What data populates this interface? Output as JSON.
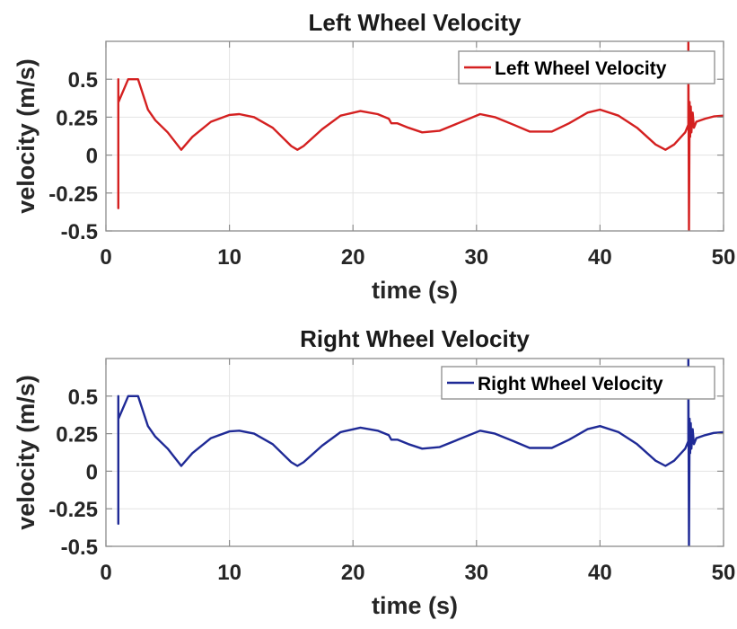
{
  "chart_data": [
    {
      "type": "line",
      "title": "Left Wheel Velocity",
      "xlabel": "time (s)",
      "ylabel": "velocity (m/s)",
      "xlim": [
        0,
        50
      ],
      "ylim": [
        -0.5,
        0.75
      ],
      "xticks": [
        0,
        10,
        20,
        30,
        40,
        50
      ],
      "xtick_labels": [
        "0",
        "10",
        "20",
        "30",
        "40",
        "50"
      ],
      "yticks": [
        -0.5,
        -0.25,
        0,
        0.25,
        0.5
      ],
      "ytick_labels": [
        "-0.5",
        "-0.25",
        "0",
        "0.25",
        "0.5"
      ],
      "grid": true,
      "legend": {
        "position": "top-right",
        "entries": [
          "Left Wheel Velocity"
        ]
      },
      "series": [
        {
          "name": "Left Wheel Velocity",
          "color": "#d42020",
          "x": [
            1.0,
            1.0,
            1.0,
            1.02,
            1.8,
            2.6,
            3.0,
            3.4,
            4.0,
            5.0,
            6.1,
            7.0,
            8.5,
            10.0,
            10.8,
            12.0,
            13.5,
            15.0,
            15.5,
            16.0,
            17.5,
            19.0,
            20.6,
            22.0,
            22.9,
            23.1,
            23.6,
            24.5,
            25.6,
            27.0,
            28.5,
            30.3,
            31.5,
            33.0,
            34.3,
            36.1,
            37.5,
            39.0,
            40.0,
            41.5,
            43.0,
            44.5,
            45.3,
            46.0,
            46.9,
            47.15,
            47.15,
            47.2,
            47.25,
            47.3,
            47.35,
            47.4,
            47.5,
            47.6,
            47.8,
            48.5,
            49.2,
            50.0
          ],
          "y": [
            0.5,
            -0.35,
            0.35,
            0.35,
            0.5,
            0.5,
            0.4,
            0.3,
            0.23,
            0.15,
            0.035,
            0.12,
            0.22,
            0.265,
            0.27,
            0.25,
            0.18,
            0.06,
            0.035,
            0.06,
            0.17,
            0.26,
            0.29,
            0.27,
            0.24,
            0.21,
            0.21,
            0.18,
            0.15,
            0.16,
            0.21,
            0.27,
            0.25,
            0.2,
            0.155,
            0.155,
            0.21,
            0.28,
            0.3,
            0.26,
            0.18,
            0.07,
            0.035,
            0.07,
            0.15,
            0.2,
            0.75,
            -0.5,
            0.35,
            0.12,
            0.32,
            0.15,
            0.28,
            0.18,
            0.22,
            0.24,
            0.255,
            0.26
          ]
        }
      ]
    },
    {
      "type": "line",
      "title": "Right Wheel Velocity",
      "xlabel": "time (s)",
      "ylabel": "velocity (m/s)",
      "xlim": [
        0,
        50
      ],
      "ylim": [
        -0.5,
        0.75
      ],
      "xticks": [
        0,
        10,
        20,
        30,
        40,
        50
      ],
      "xtick_labels": [
        "0",
        "10",
        "20",
        "30",
        "40",
        "50"
      ],
      "yticks": [
        -0.5,
        -0.25,
        0,
        0.25,
        0.5
      ],
      "ytick_labels": [
        "-0.5",
        "-0.25",
        "0",
        "0.25",
        "0.5"
      ],
      "grid": true,
      "legend": {
        "position": "top-right",
        "entries": [
          "Right Wheel Velocity"
        ]
      },
      "series": [
        {
          "name": "Right Wheel Velocity",
          "color": "#1f2a96",
          "x": [
            1.0,
            1.0,
            1.0,
            1.02,
            1.8,
            2.6,
            3.0,
            3.4,
            4.0,
            5.0,
            6.1,
            7.0,
            8.5,
            10.0,
            10.8,
            12.0,
            13.5,
            15.0,
            15.5,
            16.0,
            17.5,
            19.0,
            20.6,
            22.0,
            22.9,
            23.1,
            23.6,
            24.5,
            25.6,
            27.0,
            28.5,
            30.3,
            31.5,
            33.0,
            34.3,
            36.1,
            37.5,
            39.0,
            40.0,
            41.5,
            43.0,
            44.5,
            45.3,
            46.0,
            46.9,
            47.15,
            47.15,
            47.2,
            47.25,
            47.3,
            47.35,
            47.4,
            47.5,
            47.6,
            47.8,
            48.5,
            49.2,
            50.0
          ],
          "y": [
            0.5,
            -0.35,
            0.35,
            0.35,
            0.5,
            0.5,
            0.4,
            0.3,
            0.23,
            0.15,
            0.035,
            0.12,
            0.22,
            0.265,
            0.27,
            0.25,
            0.18,
            0.06,
            0.035,
            0.06,
            0.17,
            0.26,
            0.29,
            0.27,
            0.24,
            0.21,
            0.21,
            0.18,
            0.15,
            0.16,
            0.21,
            0.27,
            0.25,
            0.2,
            0.155,
            0.155,
            0.21,
            0.28,
            0.3,
            0.26,
            0.18,
            0.07,
            0.035,
            0.07,
            0.15,
            0.2,
            0.75,
            -0.5,
            0.35,
            0.12,
            0.32,
            0.15,
            0.28,
            0.18,
            0.22,
            0.24,
            0.255,
            0.26
          ]
        }
      ]
    }
  ]
}
